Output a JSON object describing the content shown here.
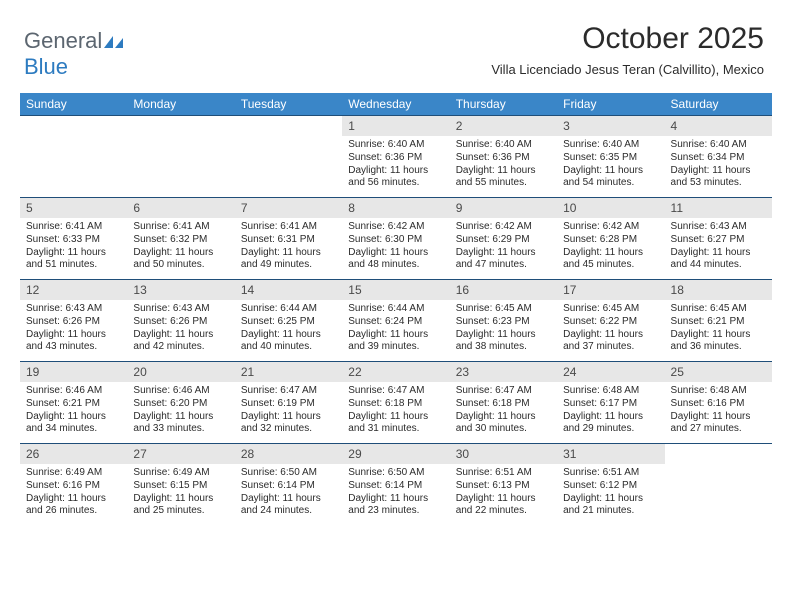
{
  "logo": {
    "text1": "General",
    "text2": "Blue"
  },
  "header": {
    "title": "October 2025",
    "location": "Villa Licenciado Jesus Teran (Calvillito), Mexico"
  },
  "colors": {
    "header_bg": "#3a86c8",
    "header_fg": "#ffffff",
    "daynum_bg": "#e7e7e7",
    "rule": "#1f4e79",
    "logo_gray": "#5c6670",
    "logo_blue": "#2d7bc0"
  },
  "weekdays": [
    "Sunday",
    "Monday",
    "Tuesday",
    "Wednesday",
    "Thursday",
    "Friday",
    "Saturday"
  ],
  "weeks": [
    [
      null,
      null,
      null,
      {
        "n": "1",
        "sr": "6:40 AM",
        "ss": "6:36 PM",
        "dl": "11 hours and 56 minutes."
      },
      {
        "n": "2",
        "sr": "6:40 AM",
        "ss": "6:36 PM",
        "dl": "11 hours and 55 minutes."
      },
      {
        "n": "3",
        "sr": "6:40 AM",
        "ss": "6:35 PM",
        "dl": "11 hours and 54 minutes."
      },
      {
        "n": "4",
        "sr": "6:40 AM",
        "ss": "6:34 PM",
        "dl": "11 hours and 53 minutes."
      }
    ],
    [
      {
        "n": "5",
        "sr": "6:41 AM",
        "ss": "6:33 PM",
        "dl": "11 hours and 51 minutes."
      },
      {
        "n": "6",
        "sr": "6:41 AM",
        "ss": "6:32 PM",
        "dl": "11 hours and 50 minutes."
      },
      {
        "n": "7",
        "sr": "6:41 AM",
        "ss": "6:31 PM",
        "dl": "11 hours and 49 minutes."
      },
      {
        "n": "8",
        "sr": "6:42 AM",
        "ss": "6:30 PM",
        "dl": "11 hours and 48 minutes."
      },
      {
        "n": "9",
        "sr": "6:42 AM",
        "ss": "6:29 PM",
        "dl": "11 hours and 47 minutes."
      },
      {
        "n": "10",
        "sr": "6:42 AM",
        "ss": "6:28 PM",
        "dl": "11 hours and 45 minutes."
      },
      {
        "n": "11",
        "sr": "6:43 AM",
        "ss": "6:27 PM",
        "dl": "11 hours and 44 minutes."
      }
    ],
    [
      {
        "n": "12",
        "sr": "6:43 AM",
        "ss": "6:26 PM",
        "dl": "11 hours and 43 minutes."
      },
      {
        "n": "13",
        "sr": "6:43 AM",
        "ss": "6:26 PM",
        "dl": "11 hours and 42 minutes."
      },
      {
        "n": "14",
        "sr": "6:44 AM",
        "ss": "6:25 PM",
        "dl": "11 hours and 40 minutes."
      },
      {
        "n": "15",
        "sr": "6:44 AM",
        "ss": "6:24 PM",
        "dl": "11 hours and 39 minutes."
      },
      {
        "n": "16",
        "sr": "6:45 AM",
        "ss": "6:23 PM",
        "dl": "11 hours and 38 minutes."
      },
      {
        "n": "17",
        "sr": "6:45 AM",
        "ss": "6:22 PM",
        "dl": "11 hours and 37 minutes."
      },
      {
        "n": "18",
        "sr": "6:45 AM",
        "ss": "6:21 PM",
        "dl": "11 hours and 36 minutes."
      }
    ],
    [
      {
        "n": "19",
        "sr": "6:46 AM",
        "ss": "6:21 PM",
        "dl": "11 hours and 34 minutes."
      },
      {
        "n": "20",
        "sr": "6:46 AM",
        "ss": "6:20 PM",
        "dl": "11 hours and 33 minutes."
      },
      {
        "n": "21",
        "sr": "6:47 AM",
        "ss": "6:19 PM",
        "dl": "11 hours and 32 minutes."
      },
      {
        "n": "22",
        "sr": "6:47 AM",
        "ss": "6:18 PM",
        "dl": "11 hours and 31 minutes."
      },
      {
        "n": "23",
        "sr": "6:47 AM",
        "ss": "6:18 PM",
        "dl": "11 hours and 30 minutes."
      },
      {
        "n": "24",
        "sr": "6:48 AM",
        "ss": "6:17 PM",
        "dl": "11 hours and 29 minutes."
      },
      {
        "n": "25",
        "sr": "6:48 AM",
        "ss": "6:16 PM",
        "dl": "11 hours and 27 minutes."
      }
    ],
    [
      {
        "n": "26",
        "sr": "6:49 AM",
        "ss": "6:16 PM",
        "dl": "11 hours and 26 minutes."
      },
      {
        "n": "27",
        "sr": "6:49 AM",
        "ss": "6:15 PM",
        "dl": "11 hours and 25 minutes."
      },
      {
        "n": "28",
        "sr": "6:50 AM",
        "ss": "6:14 PM",
        "dl": "11 hours and 24 minutes."
      },
      {
        "n": "29",
        "sr": "6:50 AM",
        "ss": "6:14 PM",
        "dl": "11 hours and 23 minutes."
      },
      {
        "n": "30",
        "sr": "6:51 AM",
        "ss": "6:13 PM",
        "dl": "11 hours and 22 minutes."
      },
      {
        "n": "31",
        "sr": "6:51 AM",
        "ss": "6:12 PM",
        "dl": "11 hours and 21 minutes."
      },
      null
    ]
  ],
  "labels": {
    "sunrise": "Sunrise: ",
    "sunset": "Sunset: ",
    "daylight": "Daylight: "
  }
}
